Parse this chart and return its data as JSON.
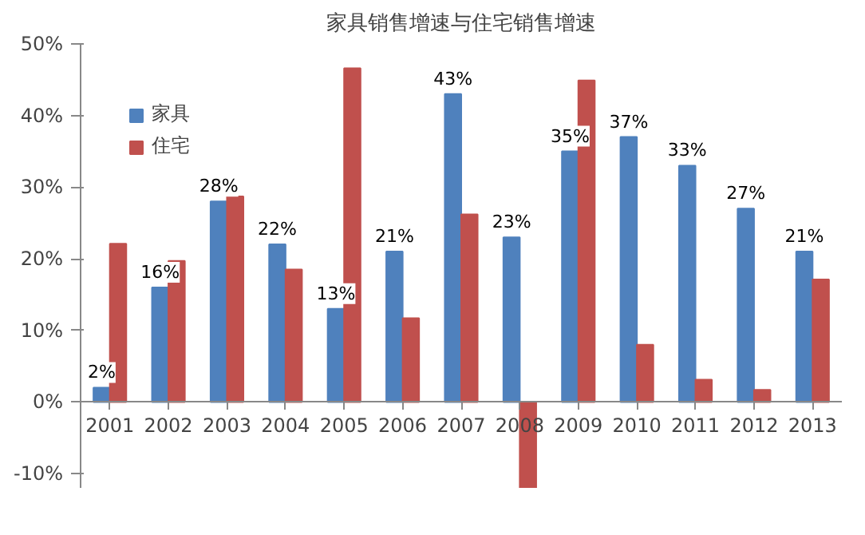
{
  "chart_data": {
    "type": "bar",
    "title": "家具销售增速与住宅销售增速",
    "categories": [
      "2001",
      "2002",
      "2003",
      "2004",
      "2005",
      "2006",
      "2007",
      "2008",
      "2009",
      "2010",
      "2011",
      "2012",
      "2013"
    ],
    "series": [
      {
        "name": "家具",
        "color": "#4f81bd",
        "values": [
          2,
          16,
          28,
          22,
          13,
          21,
          43,
          23,
          35,
          37,
          33,
          27,
          21
        ],
        "value_labels": [
          "2%",
          "16%",
          "28%",
          "22%",
          "13%",
          "21%",
          "43%",
          "23%",
          "35%",
          "37%",
          "33%",
          "27%",
          "21%"
        ]
      },
      {
        "name": "住宅",
        "color": "#c0504d",
        "values": [
          22.1,
          19.7,
          28.7,
          18.5,
          46.6,
          11.7,
          26.2,
          -12,
          44.9,
          8,
          3.1,
          1.7,
          17.1
        ]
      }
    ],
    "ylim": [
      -12,
      50
    ],
    "yticks": [
      {
        "value": -10,
        "label": "-10%"
      },
      {
        "value": 0,
        "label": "0%"
      },
      {
        "value": 10,
        "label": "10%"
      },
      {
        "value": 20,
        "label": "20%"
      },
      {
        "value": 30,
        "label": "30%"
      },
      {
        "value": 40,
        "label": "40%"
      },
      {
        "value": 50,
        "label": "50%"
      }
    ],
    "grid": false,
    "legend": "top left"
  }
}
